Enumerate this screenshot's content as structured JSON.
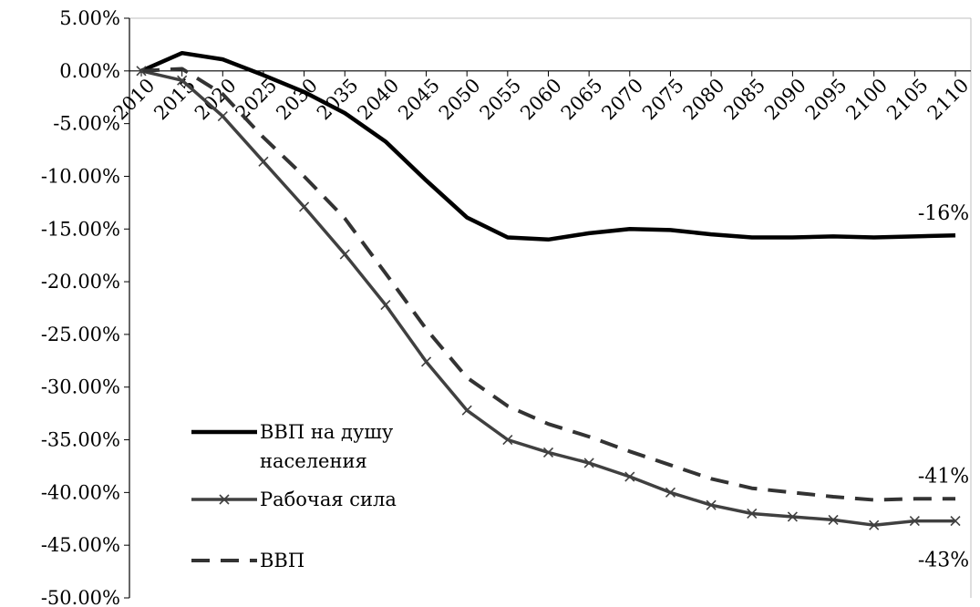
{
  "chart_data": {
    "type": "line",
    "x": [
      "2010",
      "2015",
      "2020",
      "2025",
      "2030",
      "2035",
      "2040",
      "2045",
      "2050",
      "2055",
      "2060",
      "2065",
      "2070",
      "2075",
      "2080",
      "2085",
      "2090",
      "2095",
      "2100",
      "2105",
      "2110"
    ],
    "ylim": [
      -50,
      5
    ],
    "yticks": [
      5,
      0,
      -5,
      -10,
      -15,
      -20,
      -25,
      -30,
      -35,
      -40,
      -45,
      -50
    ],
    "ytick_labels": [
      "5.00%",
      "0.00%",
      "-5.00%",
      "-10.00%",
      "-15.00%",
      "-20.00%",
      "-25.00%",
      "-30.00%",
      "-35.00%",
      "-40.00%",
      "-45.00%",
      "-50.00%"
    ],
    "grid": false,
    "legend_position": "bottom-left",
    "series": [
      {
        "name": "ВВП на душу населения",
        "legend_lines": [
          "ВВП на душу",
          "населения"
        ],
        "style": "solid-thick",
        "color": "#000000",
        "values": [
          0.0,
          1.7,
          1.1,
          -0.4,
          -2.0,
          -4.0,
          -6.7,
          -10.4,
          -13.9,
          -15.8,
          -16.0,
          -15.4,
          -15.0,
          -15.1,
          -15.5,
          -15.8,
          -15.8,
          -15.7,
          -15.8,
          -15.7,
          -15.6
        ]
      },
      {
        "name": "Рабочая сила",
        "legend_lines": [
          "Рабочая сила"
        ],
        "style": "solid-x-markers",
        "color": "#404040",
        "values": [
          0.0,
          -0.9,
          -4.3,
          -8.6,
          -12.9,
          -17.4,
          -22.2,
          -27.6,
          -32.2,
          -35.0,
          -36.2,
          -37.2,
          -38.5,
          -40.0,
          -41.2,
          -42.0,
          -42.3,
          -42.6,
          -43.1,
          -42.7,
          -42.7
        ]
      },
      {
        "name": "ВВП",
        "legend_lines": [
          "ВВП"
        ],
        "style": "dashed",
        "color": "#333333",
        "values": [
          0.0,
          0.2,
          -2.2,
          -6.3,
          -10.0,
          -14.0,
          -19.2,
          -24.5,
          -29.1,
          -31.8,
          -33.5,
          -34.7,
          -36.1,
          -37.4,
          -38.7,
          -39.6,
          -40.0,
          -40.4,
          -40.7,
          -40.6,
          -40.6
        ]
      }
    ],
    "annotations": [
      {
        "text": "-16%",
        "series": 0
      },
      {
        "text": "-41%",
        "series": 2
      },
      {
        "text": "-43%",
        "series": 1
      }
    ]
  }
}
